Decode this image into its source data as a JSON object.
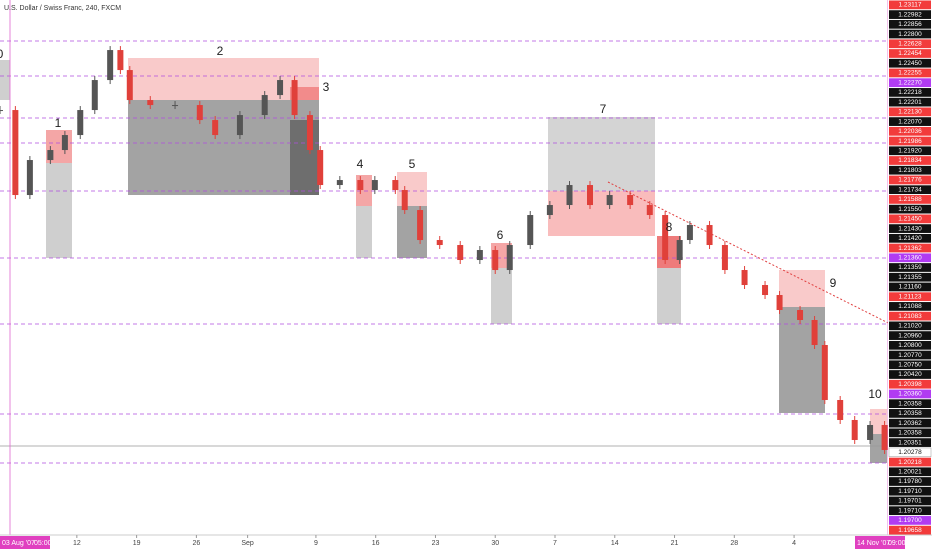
{
  "chart_data": {
    "type": "candlestick",
    "title": "U.S. Dollar / Swiss Franc, 240, FXCM",
    "up_color": "#555555",
    "down_color": "#e0403a",
    "xlim": [
      0,
      104
    ],
    "ylim": [
      1.19658,
      1.23117
    ],
    "x": [
      0,
      1.8,
      3.5,
      5.9,
      7.6,
      9.4,
      11.1,
      12.9,
      14.1,
      15.2,
      17.6,
      20.5,
      23.4,
      25.2,
      28.1,
      31,
      32.8,
      34.5,
      36.3,
      37.5,
      39.8,
      42.2,
      43.9,
      46.3,
      47.4,
      49.2,
      51.5,
      53.9,
      56.2,
      58,
      59.7,
      62.1,
      64.4,
      66.7,
      69.1,
      71.4,
      73.8,
      76.1,
      77.9,
      79.6,
      80.8,
      83.1,
      84.9,
      87.2,
      89.6,
      91.3,
      93.7,
      95.4,
      96.6,
      98.4,
      100.1,
      101.9,
      103.6
    ],
    "close": [
      1.22417,
      1.21856,
      1.22087,
      1.22153,
      1.22252,
      1.22417,
      1.22615,
      1.22813,
      1.22681,
      1.22483,
      1.2245,
      1.2245,
      1.22351,
      1.22252,
      1.22384,
      1.22516,
      1.22615,
      1.22384,
      1.22153,
      1.21922,
      1.21955,
      1.21889,
      1.21955,
      1.21889,
      1.21757,
      1.21559,
      1.21526,
      1.21427,
      1.21493,
      1.21361,
      1.21526,
      1.21724,
      1.2179,
      1.21922,
      1.2179,
      1.21856,
      1.2179,
      1.21724,
      1.21427,
      1.21559,
      1.21658,
      1.21526,
      1.21361,
      1.21262,
      1.21196,
      1.21097,
      1.21031,
      1.20866,
      1.20503,
      1.20371,
      1.20239,
      1.20338,
      1.20173
    ],
    "xticks": [
      {
        "value": 9,
        "label": "12"
      },
      {
        "value": 16,
        "label": "19"
      },
      {
        "value": 23,
        "label": "26"
      },
      {
        "value": 29,
        "label": "Sep"
      },
      {
        "value": 37,
        "label": "9"
      },
      {
        "value": 44,
        "label": "16"
      },
      {
        "value": 51,
        "label": "23"
      },
      {
        "value": 58,
        "label": "30"
      },
      {
        "value": 65,
        "label": "7"
      },
      {
        "value": 72,
        "label": "14"
      },
      {
        "value": 79,
        "label": "21"
      },
      {
        "value": 86,
        "label": "28"
      },
      {
        "value": 93,
        "label": "4"
      }
    ],
    "start_date": "03 Aug '07",
    "start_time": "05:00",
    "end_date": "14 Nov '07",
    "end_time": "09:00",
    "annotations": [
      "0",
      "1",
      "2",
      "3",
      "4",
      "5",
      "6",
      "7",
      "8",
      "9",
      "10"
    ],
    "price_labels": [
      {
        "label": "1.23117",
        "bg": "red"
      },
      {
        "label": "1.22982",
        "bg": "black"
      },
      {
        "label": "1.22856",
        "bg": "black"
      },
      {
        "label": "1.22800",
        "bg": "black"
      },
      {
        "label": "1.22628",
        "bg": "red"
      },
      {
        "label": "1.22454",
        "bg": "red"
      },
      {
        "label": "1.22450",
        "bg": "black"
      },
      {
        "label": "1.22255",
        "bg": "red"
      },
      {
        "label": "1.22270",
        "bg": "purple"
      },
      {
        "label": "1.22218",
        "bg": "black"
      },
      {
        "label": "1.22201",
        "bg": "black"
      },
      {
        "label": "1.22130",
        "bg": "red"
      },
      {
        "label": "1.22070",
        "bg": "black"
      },
      {
        "label": "1.22036",
        "bg": "red"
      },
      {
        "label": "1.21986",
        "bg": "red"
      },
      {
        "label": "1.21920",
        "bg": "black"
      },
      {
        "label": "1.21834",
        "bg": "red"
      },
      {
        "label": "1.21803",
        "bg": "black"
      },
      {
        "label": "1.21776",
        "bg": "red"
      },
      {
        "label": "1.21734",
        "bg": "black"
      },
      {
        "label": "1.21588",
        "bg": "red"
      },
      {
        "label": "1.21550",
        "bg": "black"
      },
      {
        "label": "1.21450",
        "bg": "red"
      },
      {
        "label": "1.21430",
        "bg": "black"
      },
      {
        "label": "1.21420",
        "bg": "black"
      },
      {
        "label": "1.21362",
        "bg": "red"
      },
      {
        "label": "1.21360",
        "bg": "purple"
      },
      {
        "label": "1.21359",
        "bg": "black"
      },
      {
        "label": "1.21355",
        "bg": "black"
      },
      {
        "label": "1.21160",
        "bg": "black"
      },
      {
        "label": "1.21123",
        "bg": "red"
      },
      {
        "label": "1.21088",
        "bg": "black"
      },
      {
        "label": "1.21083",
        "bg": "red"
      },
      {
        "label": "1.21020",
        "bg": "black"
      },
      {
        "label": "1.20960",
        "bg": "black"
      },
      {
        "label": "1.20800",
        "bg": "black"
      },
      {
        "label": "1.20770",
        "bg": "black"
      },
      {
        "label": "1.20750",
        "bg": "black"
      },
      {
        "label": "1.20420",
        "bg": "black"
      },
      {
        "label": "1.20398",
        "bg": "red"
      },
      {
        "label": "1.20360",
        "bg": "purple"
      },
      {
        "label": "1.20358",
        "bg": "black"
      },
      {
        "label": "1.20358",
        "bg": "black"
      },
      {
        "label": "1.20362",
        "bg": "black"
      },
      {
        "label": "1.20358",
        "bg": "black"
      },
      {
        "label": "1.20351",
        "bg": "black"
      },
      {
        "label": "1.20278",
        "bg": "white"
      },
      {
        "label": "1.20218",
        "bg": "red"
      },
      {
        "label": "1.20021",
        "bg": "black"
      },
      {
        "label": "1.19780",
        "bg": "black"
      },
      {
        "label": "1.19710",
        "bg": "black"
      },
      {
        "label": "1.19701",
        "bg": "black"
      },
      {
        "label": "1.19710",
        "bg": "black"
      },
      {
        "label": "1.19700",
        "bg": "purple"
      },
      {
        "label": "1.19658",
        "bg": "red"
      }
    ]
  }
}
